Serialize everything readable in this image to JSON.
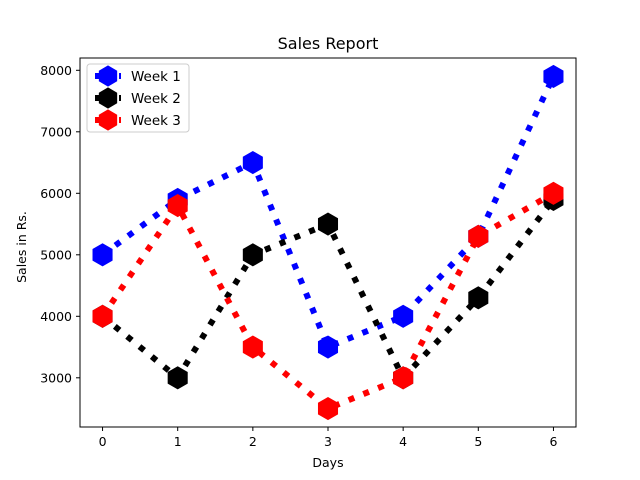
{
  "chart_data": {
    "type": "line",
    "title": "Sales Report",
    "xlabel": "Days",
    "ylabel": "Sales in Rs.",
    "x": [
      0,
      1,
      2,
      3,
      4,
      5,
      6
    ],
    "xticks": [
      0,
      1,
      2,
      3,
      4,
      5,
      6
    ],
    "yticks": [
      3000,
      4000,
      5000,
      6000,
      7000,
      8000
    ],
    "xlim": [
      -0.3,
      6.3
    ],
    "ylim": [
      2200,
      8200
    ],
    "grid": false,
    "legend_position": "top-left",
    "line_style": "dotted",
    "marker": "hexagon",
    "series": [
      {
        "name": "Week 1",
        "color": "#0000ff",
        "values": [
          5000,
          5900,
          6500,
          3500,
          4000,
          5300,
          7900
        ]
      },
      {
        "name": "Week 2",
        "color": "#000000",
        "values": [
          4000,
          3000,
          5000,
          5500,
          3000,
          4300,
          5900
        ]
      },
      {
        "name": "Week 3",
        "color": "#ff0000",
        "values": [
          4000,
          5800,
          3500,
          2500,
          3000,
          5300,
          6000
        ]
      }
    ]
  }
}
